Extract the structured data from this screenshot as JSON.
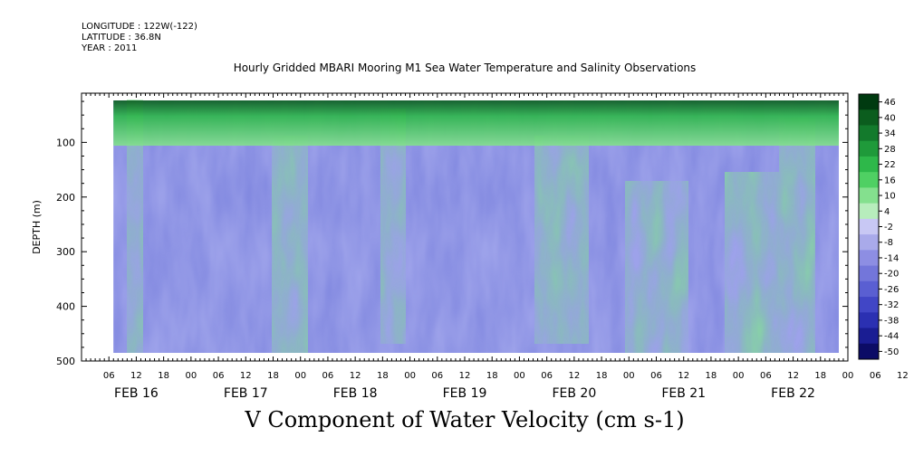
{
  "meta": {
    "longitude": "LONGITUDE : 122W(-122)",
    "latitude": "LATITUDE : 36.8N",
    "year": "YEAR : 2011"
  },
  "chart_data": {
    "type": "heatmap",
    "title": "Hourly Gridded MBARI Mooring M1 Sea Water Temperature and Salinity Observations",
    "bottom_title": "V Component of Water Velocity (cm s-1)",
    "ylabel": "DEPTH (m)",
    "y_ticks": [
      100,
      200,
      300,
      400,
      500
    ],
    "ylim": [
      500,
      10
    ],
    "x_hour_labels": [
      "06",
      "12",
      "18",
      "00",
      "06",
      "12",
      "18",
      "00",
      "06",
      "12",
      "18",
      "00",
      "06",
      "12",
      "18",
      "00",
      "06",
      "12",
      "18",
      "00",
      "06",
      "12",
      "18",
      "00",
      "06",
      "12",
      "18",
      "00",
      "06",
      "12",
      "18",
      "00"
    ],
    "x_day_labels": [
      "FEB 16",
      "FEB 17",
      "FEB 18",
      "FEB 19",
      "FEB 20",
      "FEB 21",
      "FEB 22"
    ],
    "xlim_hours": [
      0,
      168
    ],
    "data_start_hour": 7,
    "colorbar": {
      "labels": [
        "46",
        "40",
        "34",
        "28",
        "22",
        "16",
        "10",
        "4",
        "-2",
        "-8",
        "-14",
        "-20",
        "-26",
        "-32",
        "-38",
        "-44",
        "-50"
      ],
      "colors": [
        "#003a10",
        "#0b5d1e",
        "#137a2c",
        "#1f9a3a",
        "#2eb84a",
        "#4fd063",
        "#84e08e",
        "#b7edbc",
        "#c8c8f4",
        "#a9aaea",
        "#8d8ee3",
        "#7376da",
        "#5a5fd2",
        "#4146c6",
        "#2b30b2",
        "#1a1d93",
        "#0c0c66"
      ]
    },
    "grid": false
  }
}
